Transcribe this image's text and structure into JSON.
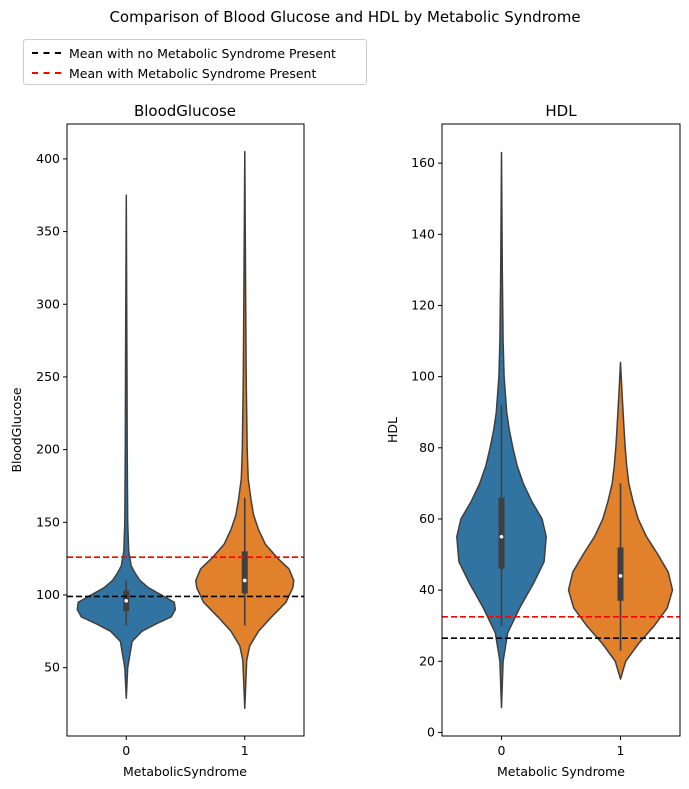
{
  "figure": {
    "suptitle": "Comparison of Blood Glucose and HDL by Metabolic Syndrome"
  },
  "legend": {
    "items": [
      {
        "label": "Mean with no Metabolic Syndrome Present",
        "color": "#000000"
      },
      {
        "label": "Mean with Metabolic Syndrome Present",
        "color": "#ff0000"
      }
    ]
  },
  "chart_data": [
    {
      "type": "violin",
      "title": "BloodGlucose",
      "xlabel": "MetabolicSyndrome",
      "ylabel": "BloodGlucose",
      "categories": [
        "0",
        "1"
      ],
      "category_colors": [
        "#3274a1",
        "#e1812c"
      ],
      "ylim": [
        3,
        424
      ],
      "yticks": [
        50,
        100,
        150,
        200,
        250,
        300,
        350,
        400
      ],
      "grid": false,
      "series": [
        {
          "category": "0",
          "min": 29,
          "max": 375,
          "q1": 89,
          "median": 96,
          "q3": 103,
          "whisker_low": 79,
          "whisker_high": 110,
          "density": [
            [
              29,
              0
            ],
            [
              50,
              0.03
            ],
            [
              68,
              0.12
            ],
            [
              75,
              0.32
            ],
            [
              80,
              0.6
            ],
            [
              85,
              0.92
            ],
            [
              90,
              1.0
            ],
            [
              95,
              0.98
            ],
            [
              100,
              0.72
            ],
            [
              105,
              0.45
            ],
            [
              110,
              0.28
            ],
            [
              115,
              0.18
            ],
            [
              120,
              0.1
            ],
            [
              130,
              0.05
            ],
            [
              150,
              0.03
            ],
            [
              200,
              0.02
            ],
            [
              250,
              0.015
            ],
            [
              300,
              0.01
            ],
            [
              375,
              0
            ]
          ]
        },
        {
          "category": "1",
          "min": 22,
          "max": 405,
          "q1": 101,
          "median": 110,
          "q3": 130,
          "whisker_low": 79,
          "whisker_high": 167,
          "density": [
            [
              22,
              0
            ],
            [
              55,
              0.04
            ],
            [
              65,
              0.1
            ],
            [
              75,
              0.28
            ],
            [
              85,
              0.55
            ],
            [
              95,
              0.84
            ],
            [
              105,
              0.98
            ],
            [
              110,
              1.0
            ],
            [
              118,
              0.9
            ],
            [
              125,
              0.68
            ],
            [
              135,
              0.42
            ],
            [
              145,
              0.28
            ],
            [
              155,
              0.18
            ],
            [
              165,
              0.13
            ],
            [
              180,
              0.07
            ],
            [
              200,
              0.05
            ],
            [
              250,
              0.03
            ],
            [
              300,
              0.02
            ],
            [
              405,
              0
            ]
          ]
        }
      ],
      "mean_lines": [
        {
          "label": "Mean with no Metabolic Syndrome Present",
          "value": 99,
          "color": "#000000"
        },
        {
          "label": "Mean with Metabolic Syndrome Present",
          "value": 126,
          "color": "#ff0000"
        }
      ]
    },
    {
      "type": "violin",
      "title": "HDL",
      "xlabel": "Metabolic Syndrome",
      "ylabel": "HDL",
      "categories": [
        "0",
        "1"
      ],
      "category_colors": [
        "#3274a1",
        "#e1812c"
      ],
      "ylim": [
        -1,
        171
      ],
      "yticks": [
        0,
        20,
        40,
        60,
        80,
        100,
        120,
        140,
        160
      ],
      "grid": false,
      "series": [
        {
          "category": "0",
          "min": 7,
          "max": 163,
          "q1": 46,
          "median": 55,
          "q3": 66,
          "whisker_low": 30,
          "whisker_high": 92,
          "density": [
            [
              7,
              0
            ],
            [
              20,
              0.03
            ],
            [
              28,
              0.12
            ],
            [
              35,
              0.35
            ],
            [
              42,
              0.62
            ],
            [
              48,
              0.82
            ],
            [
              55,
              0.86
            ],
            [
              60,
              0.78
            ],
            [
              65,
              0.58
            ],
            [
              70,
              0.42
            ],
            [
              75,
              0.3
            ],
            [
              80,
              0.22
            ],
            [
              85,
              0.15
            ],
            [
              90,
              0.1
            ],
            [
              100,
              0.05
            ],
            [
              110,
              0.03
            ],
            [
              130,
              0.015
            ],
            [
              163,
              0
            ]
          ]
        },
        {
          "category": "1",
          "min": 15,
          "max": 104,
          "q1": 37,
          "median": 44,
          "q3": 52,
          "whisker_low": 23,
          "whisker_high": 70,
          "density": [
            [
              15,
              0
            ],
            [
              20,
              0.1
            ],
            [
              25,
              0.35
            ],
            [
              30,
              0.65
            ],
            [
              35,
              0.9
            ],
            [
              40,
              1.0
            ],
            [
              45,
              0.92
            ],
            [
              50,
              0.72
            ],
            [
              55,
              0.5
            ],
            [
              60,
              0.34
            ],
            [
              65,
              0.24
            ],
            [
              70,
              0.16
            ],
            [
              75,
              0.12
            ],
            [
              80,
              0.09
            ],
            [
              85,
              0.07
            ],
            [
              90,
              0.05
            ],
            [
              95,
              0.03
            ],
            [
              104,
              0
            ]
          ]
        }
      ],
      "mean_lines": [
        {
          "label": "Mean with no Metabolic Syndrome Present",
          "value": 26.5,
          "color": "#000000"
        },
        {
          "label": "Mean with Metabolic Syndrome Present",
          "value": 32.5,
          "color": "#ff0000"
        }
      ]
    }
  ]
}
